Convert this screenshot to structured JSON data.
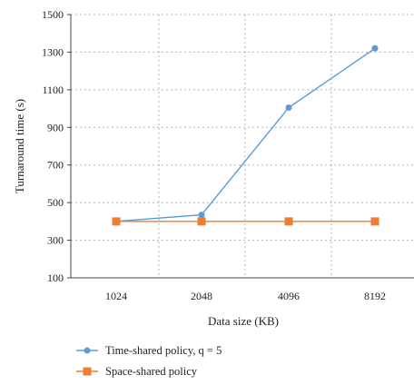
{
  "chart_data": {
    "type": "line",
    "title": "",
    "xlabel": "Data size (KB)",
    "ylabel": "Turnaround time (s)",
    "categories": [
      "1024",
      "2048",
      "4096",
      "8192"
    ],
    "yticks": [
      "100",
      "300",
      "500",
      "700",
      "900",
      "1100",
      "1300",
      "1500"
    ],
    "ylim": [
      100,
      1500
    ],
    "grid": "horizontal dotted",
    "legend_position": "bottom-left",
    "series": [
      {
        "name": "Time-shared policy, q = 5",
        "values": [
          400,
          435,
          1005,
          1320
        ],
        "color": "#5b9bd5",
        "marker": "circle"
      },
      {
        "name": "Space-shared policy",
        "values": [
          400,
          400,
          400,
          400
        ],
        "color": "#ed7d31",
        "marker": "square"
      }
    ]
  }
}
